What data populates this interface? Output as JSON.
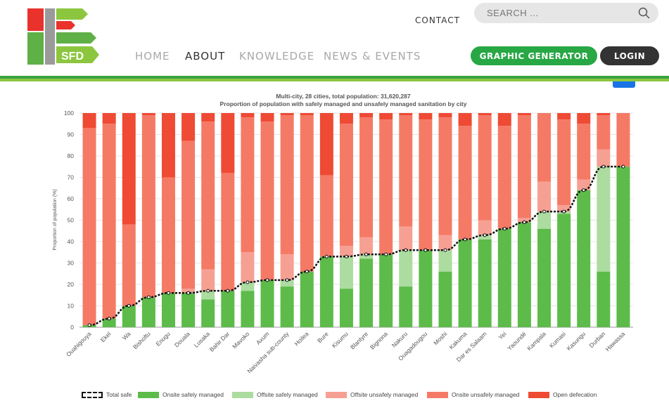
{
  "header": {
    "logo_text": "SFD",
    "contact_label": "CONTACT",
    "search_placeholder": "SEARCH ...",
    "menu": [
      "HOME",
      "ABOUT",
      "KNOWLEDGE",
      "NEWS & EVENTS"
    ],
    "active_menu": "ABOUT",
    "graphic_generator_label": "GRAPHIC GENERATOR",
    "login_label": "LOGIN"
  },
  "colors": {
    "total_safe": "#111111",
    "onsite_safe": "#5dbb4a",
    "offsite_safe": "#acdc9f",
    "offsite_unsafe": "#f6a093",
    "onsite_unsafe": "#f57a66",
    "open_defecation": "#ef4a34",
    "brand_green": "#28a745",
    "login_dark": "#333333"
  },
  "chart_data": {
    "type": "bar",
    "stacked": true,
    "title": "Multi-city, 28 cities, total population: 31,620,287",
    "subtitle": "Proportion of population with safely managed and unsafely managed sanitation by city",
    "xlabel": "",
    "ylabel": "Proportion of population (%)",
    "ylim": [
      0,
      100
    ],
    "yticks": [
      0,
      10,
      20,
      30,
      40,
      50,
      60,
      70,
      80,
      90,
      100
    ],
    "grid": "horizontal",
    "legend_position": "bottom",
    "categories": [
      "Ouahigouya",
      "Ekel",
      "Wa",
      "Bishoftu",
      "Enugu",
      "Douala",
      "Lusaka",
      "Bahir Dar",
      "Mavoko",
      "Axum",
      "Naivasha sub-county",
      "Hoilea",
      "Bure",
      "Kisumu",
      "Blantyre",
      "Bignona",
      "Nakuru",
      "Ouagadougou",
      "Moshi",
      "Kakuma",
      "Dar es Salaam",
      "Yei",
      "Yaoundé",
      "Kampala",
      "Kumasi",
      "Kasungu",
      "Durban",
      "Hawassa"
    ],
    "series": [
      {
        "name": "Onsite safely managed",
        "values": [
          1,
          4,
          10,
          14,
          16,
          16,
          13,
          17,
          17,
          22,
          19,
          26,
          33,
          18,
          32,
          34,
          19,
          36,
          26,
          41,
          41,
          46,
          49,
          46,
          53,
          64,
          26,
          75
        ]
      },
      {
        "name": "Offsite safely managed",
        "values": [
          0,
          0,
          0,
          0,
          0,
          0,
          4,
          0,
          4,
          0,
          3,
          0,
          0,
          15,
          2,
          0,
          17,
          0,
          10,
          0,
          2,
          0,
          0,
          8,
          1,
          0,
          49,
          0
        ]
      },
      {
        "name": "Offsite unsafely managed",
        "values": [
          0,
          0,
          0,
          0,
          0,
          2,
          10,
          0,
          14,
          0,
          12,
          0,
          0,
          5,
          8,
          0,
          11,
          0,
          7,
          0,
          7,
          0,
          2,
          14,
          3,
          5,
          8,
          0
        ]
      },
      {
        "name": "Onsite unsafely managed",
        "values": [
          92,
          91,
          38,
          85,
          54,
          69,
          69,
          55,
          63,
          74,
          65,
          73,
          38,
          57,
          56,
          63,
          52,
          61,
          55,
          53,
          49,
          48,
          48,
          32,
          40,
          26,
          16,
          25
        ]
      },
      {
        "name": "Open defecation",
        "values": [
          7,
          5,
          52,
          1,
          30,
          13,
          4,
          28,
          2,
          4,
          1,
          1,
          29,
          5,
          2,
          3,
          1,
          3,
          2,
          6,
          1,
          6,
          1,
          0,
          3,
          5,
          1,
          0
        ]
      }
    ],
    "line_series": {
      "name": "Total safe",
      "values": [
        1,
        4,
        10,
        14,
        16,
        16,
        17,
        17,
        21,
        22,
        22,
        26,
        33,
        33,
        34,
        34,
        36,
        36,
        36,
        41,
        43,
        46,
        49,
        54,
        54,
        64,
        75,
        75
      ]
    }
  }
}
